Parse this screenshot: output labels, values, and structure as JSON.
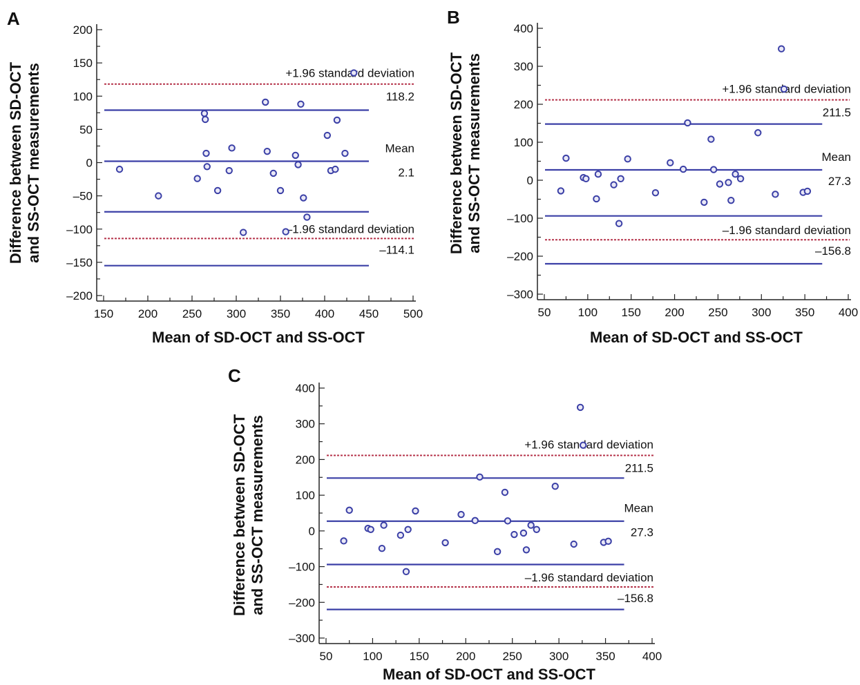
{
  "chart_data": [
    {
      "type": "scatter",
      "panel": "A",
      "xlabel": "Mean of SD-OCT and SS-OCT",
      "ylabel": [
        "Difference between SD-OCT",
        "and SS-OCT measurements"
      ],
      "xlim": [
        150,
        500
      ],
      "ylim": [
        -200,
        200
      ],
      "xticks": [
        150,
        200,
        250,
        300,
        350,
        400,
        450,
        500
      ],
      "yticks": [
        -200,
        -150,
        -100,
        -50,
        0,
        50,
        100,
        150,
        200
      ],
      "line_xmax": 450,
      "mean_line": 2.1,
      "blue_lines": [
        79,
        -74,
        -155
      ],
      "red_lines": [
        118.2,
        -114.1
      ],
      "annotations": {
        "upper_label": "+1.96 standard deviation",
        "upper_value": "118.2",
        "mean_label": "Mean",
        "mean_value": "2.1",
        "lower_label": "–1.96 standard deviation",
        "lower_value": "–114.1"
      },
      "points": [
        [
          168,
          -10
        ],
        [
          212,
          -50
        ],
        [
          256,
          -24
        ],
        [
          264,
          74
        ],
        [
          265,
          65
        ],
        [
          266,
          14
        ],
        [
          267,
          -6
        ],
        [
          279,
          -42
        ],
        [
          292,
          -12
        ],
        [
          295,
          22
        ],
        [
          308,
          -105
        ],
        [
          333,
          91
        ],
        [
          335,
          17
        ],
        [
          342,
          -16
        ],
        [
          350,
          -42
        ],
        [
          356,
          -104
        ],
        [
          367,
          11
        ],
        [
          370,
          -3
        ],
        [
          373,
          88
        ],
        [
          376,
          -53
        ],
        [
          380,
          -82
        ],
        [
          403,
          41
        ],
        [
          407,
          -12
        ],
        [
          412,
          -10
        ],
        [
          414,
          64
        ],
        [
          423,
          14
        ],
        [
          433,
          135
        ]
      ]
    },
    {
      "type": "scatter",
      "panel": "B",
      "xlabel": "Mean of SD-OCT and SS-OCT",
      "ylabel": [
        "Difference between SD-OCT",
        "and SS-OCT measurements"
      ],
      "xlim": [
        50,
        400
      ],
      "ylim": [
        -300,
        400
      ],
      "xticks": [
        50,
        100,
        150,
        200,
        250,
        300,
        350,
        400
      ],
      "yticks": [
        -300,
        -200,
        -100,
        0,
        100,
        200,
        300,
        400
      ],
      "line_xmax": 370,
      "mean_line": 27.3,
      "blue_lines": [
        148,
        -94,
        -220
      ],
      "red_lines": [
        211.5,
        -156.8
      ],
      "annotations": {
        "upper_label": "+1.96 standard deviation",
        "upper_value": "211.5",
        "mean_label": "Mean",
        "mean_value": "27.3",
        "lower_label": "–1.96 standard deviation",
        "lower_value": "–156.8"
      },
      "points": [
        [
          69,
          -28
        ],
        [
          75,
          58
        ],
        [
          95,
          7
        ],
        [
          98,
          4
        ],
        [
          110,
          -49
        ],
        [
          112,
          16
        ],
        [
          130,
          -12
        ],
        [
          136,
          -114
        ],
        [
          138,
          4
        ],
        [
          146,
          56
        ],
        [
          178,
          -33
        ],
        [
          195,
          46
        ],
        [
          210,
          29
        ],
        [
          215,
          151
        ],
        [
          234,
          -58
        ],
        [
          242,
          108
        ],
        [
          245,
          28
        ],
        [
          252,
          -10
        ],
        [
          262,
          -6
        ],
        [
          265,
          -53
        ],
        [
          270,
          16
        ],
        [
          276,
          4
        ],
        [
          296,
          125
        ],
        [
          316,
          -37
        ],
        [
          323,
          346
        ],
        [
          326,
          240
        ],
        [
          348,
          -32
        ],
        [
          353,
          -29
        ]
      ]
    },
    {
      "type": "scatter",
      "panel": "C",
      "xlabel": "Mean of SD-OCT and SS-OCT",
      "ylabel": [
        "Difference between SD-OCT",
        "and SS-OCT measurements"
      ],
      "xlim": [
        50,
        400
      ],
      "ylim": [
        -300,
        400
      ],
      "xticks": [
        50,
        100,
        150,
        200,
        250,
        300,
        350,
        400
      ],
      "yticks": [
        -300,
        -200,
        -100,
        0,
        100,
        200,
        300,
        400
      ],
      "line_xmax": 370,
      "mean_line": 27.3,
      "blue_lines": [
        148,
        -94,
        -220
      ],
      "red_lines": [
        211.5,
        -156.8
      ],
      "annotations": {
        "upper_label": "+1.96 standard deviation",
        "upper_value": "211.5",
        "mean_label": "Mean",
        "mean_value": "27.3",
        "lower_label": "–1.96 standard deviation",
        "lower_value": "–156.8"
      },
      "points": [
        [
          69,
          -28
        ],
        [
          75,
          58
        ],
        [
          95,
          7
        ],
        [
          98,
          4
        ],
        [
          110,
          -49
        ],
        [
          112,
          16
        ],
        [
          130,
          -12
        ],
        [
          136,
          -114
        ],
        [
          138,
          4
        ],
        [
          146,
          56
        ],
        [
          178,
          -33
        ],
        [
          195,
          46
        ],
        [
          210,
          29
        ],
        [
          215,
          151
        ],
        [
          234,
          -58
        ],
        [
          242,
          108
        ],
        [
          245,
          28
        ],
        [
          252,
          -10
        ],
        [
          262,
          -6
        ],
        [
          265,
          -53
        ],
        [
          270,
          16
        ],
        [
          276,
          4
        ],
        [
          296,
          125
        ],
        [
          316,
          -37
        ],
        [
          323,
          346
        ],
        [
          326,
          240
        ],
        [
          348,
          -32
        ],
        [
          353,
          -29
        ]
      ]
    }
  ]
}
